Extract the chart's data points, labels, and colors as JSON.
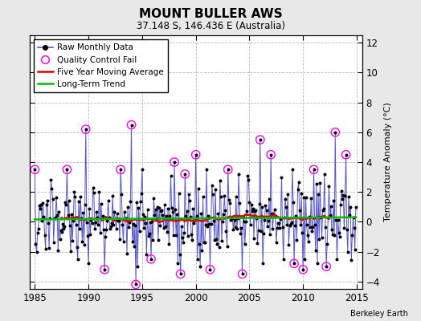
{
  "title": "MOUNT BULLER AWS",
  "subtitle": "37.148 S, 146.436 E (Australia)",
  "ylabel": "Temperature Anomaly (°C)",
  "credit": "Berkeley Earth",
  "xlim": [
    1984.5,
    2015.5
  ],
  "ylim": [
    -4.5,
    12.5
  ],
  "yticks": [
    -4,
    -2,
    0,
    2,
    4,
    6,
    8,
    10,
    12
  ],
  "xticks": [
    1985,
    1990,
    1995,
    2000,
    2005,
    2010,
    2015
  ],
  "raw_color": "#5555cc",
  "ma_color": "#dd0000",
  "trend_color": "#00bb00",
  "qc_color": "#ff00ff",
  "bg_color": "#e8e8e8",
  "plot_bg": "#ffffff",
  "grid_color": "#bbbbbb"
}
